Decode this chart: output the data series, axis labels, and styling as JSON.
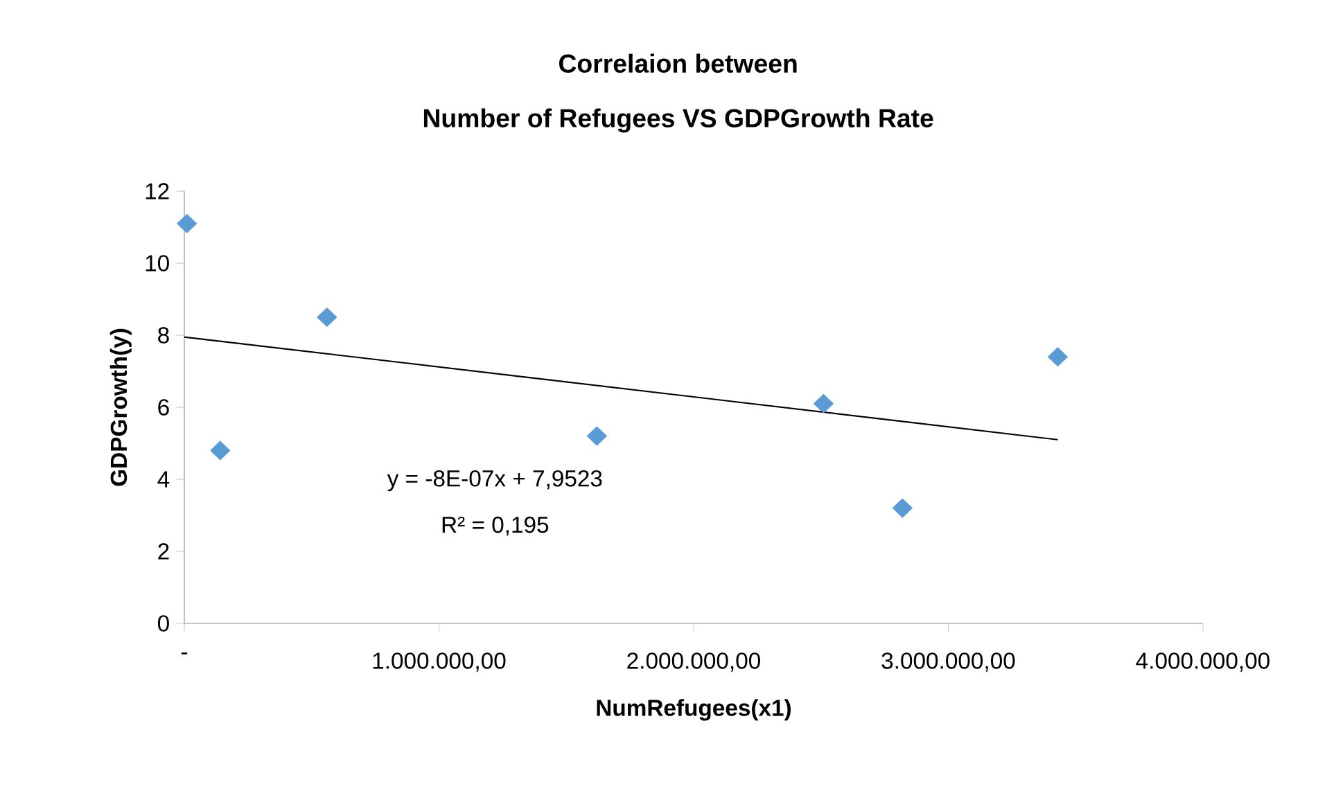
{
  "chart_data": {
    "type": "scatter",
    "title": "Correlaion between",
    "subtitle": "Number of Refugees VS GDPGrowth Rate",
    "xlabel": "NumRefugees(x1)",
    "ylabel": "GDPGrowth(y)",
    "series": [
      {
        "color": "#5b9bd5",
        "x": [
          10000,
          141000,
          560000,
          1620000,
          2510000,
          2820000,
          3430000
        ],
        "values": [
          11.1,
          4.8,
          8.5,
          5.2,
          6.1,
          3.2,
          7.4
        ]
      },
      {
        "type": "line",
        "marker": "none",
        "color": "#000000",
        "x": [
          0,
          3430000
        ],
        "values": [
          7.95,
          5.1
        ]
      }
    ],
    "xlim": [
      0,
      4000000
    ],
    "ylim": [
      0,
      12
    ],
    "xticks": [
      {
        "value": 0,
        "label": "-"
      },
      {
        "value": 1000000,
        "label": "1.000.000,00"
      },
      {
        "value": 2000000,
        "label": "2.000.000,00"
      },
      {
        "value": 3000000,
        "label": "3.000.000,00"
      },
      {
        "value": 4000000,
        "label": "4.000.000,00"
      }
    ],
    "yticks": [
      0,
      2,
      4,
      6,
      8,
      10,
      12
    ],
    "annotations": [
      "y = -8E-07x + 7,9523",
      "R² = 0,195"
    ],
    "marker": "diamond",
    "grid": false,
    "legend": false
  }
}
